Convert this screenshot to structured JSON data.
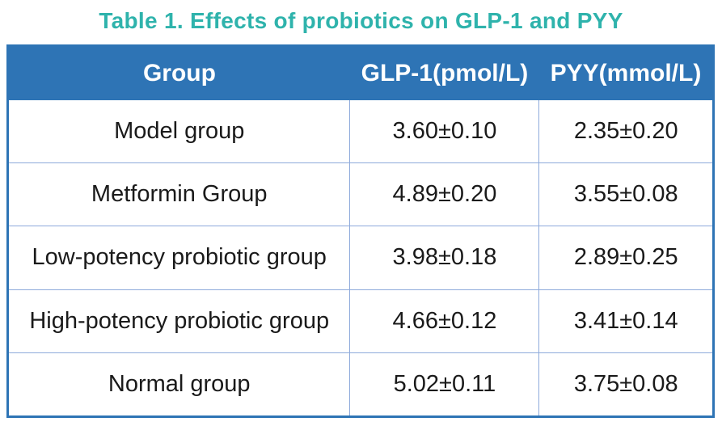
{
  "title": "Table 1. Effects of probiotics on GLP-1 and PYY",
  "colors": {
    "title_teal": "#2fb3ac",
    "header_blue": "#2e74b5",
    "grid_line_blue": "#8eaadb",
    "body_text": "#1a1a1a",
    "header_text": "#ffffff",
    "background": "#ffffff"
  },
  "table": {
    "columns": [
      "Group",
      "GLP-1(pmol/L)",
      "PYY(mmol/L)"
    ],
    "rows": [
      {
        "group": "Model group",
        "glp1": "3.60±0.10",
        "pyy": "2.35±0.20"
      },
      {
        "group": "Metformin Group",
        "glp1": "4.89±0.20",
        "pyy": "3.55±0.08"
      },
      {
        "group": "Low-potency probiotic group",
        "glp1": "3.98±0.18",
        "pyy": "2.89±0.25"
      },
      {
        "group": "High-potency probiotic group",
        "glp1": "4.66±0.12",
        "pyy": "3.41±0.14"
      },
      {
        "group": "Normal group",
        "glp1": "5.02±0.11",
        "pyy": "3.75±0.08"
      }
    ]
  },
  "chart_data": {
    "type": "table",
    "title": "Table 1. Effects of probiotics on GLP-1 and PYY",
    "columns": [
      "Group",
      "GLP-1(pmol/L)",
      "PYY(mmol/L)"
    ],
    "rows": [
      [
        "Model group",
        "3.60±0.10",
        "2.35±0.20"
      ],
      [
        "Metformin Group",
        "4.89±0.20",
        "3.55±0.08"
      ],
      [
        "Low-potency probiotic group",
        "3.98±0.18",
        "2.89±0.25"
      ],
      [
        "High-potency probiotic group",
        "4.66±0.12",
        "3.41±0.14"
      ],
      [
        "Normal group",
        "5.02±0.11",
        "3.75±0.08"
      ]
    ],
    "series": [
      {
        "name": "GLP-1(pmol/L)",
        "mean": [
          3.6,
          4.89,
          3.98,
          4.66,
          5.02
        ],
        "sd": [
          0.1,
          0.2,
          0.18,
          0.12,
          0.11
        ]
      },
      {
        "name": "PYY(mmol/L)",
        "mean": [
          2.35,
          3.55,
          2.89,
          3.41,
          3.75
        ],
        "sd": [
          0.2,
          0.08,
          0.25,
          0.14,
          0.08
        ]
      }
    ],
    "categories": [
      "Model group",
      "Metformin Group",
      "Low-potency probiotic group",
      "High-potency probiotic group",
      "Normal group"
    ]
  }
}
